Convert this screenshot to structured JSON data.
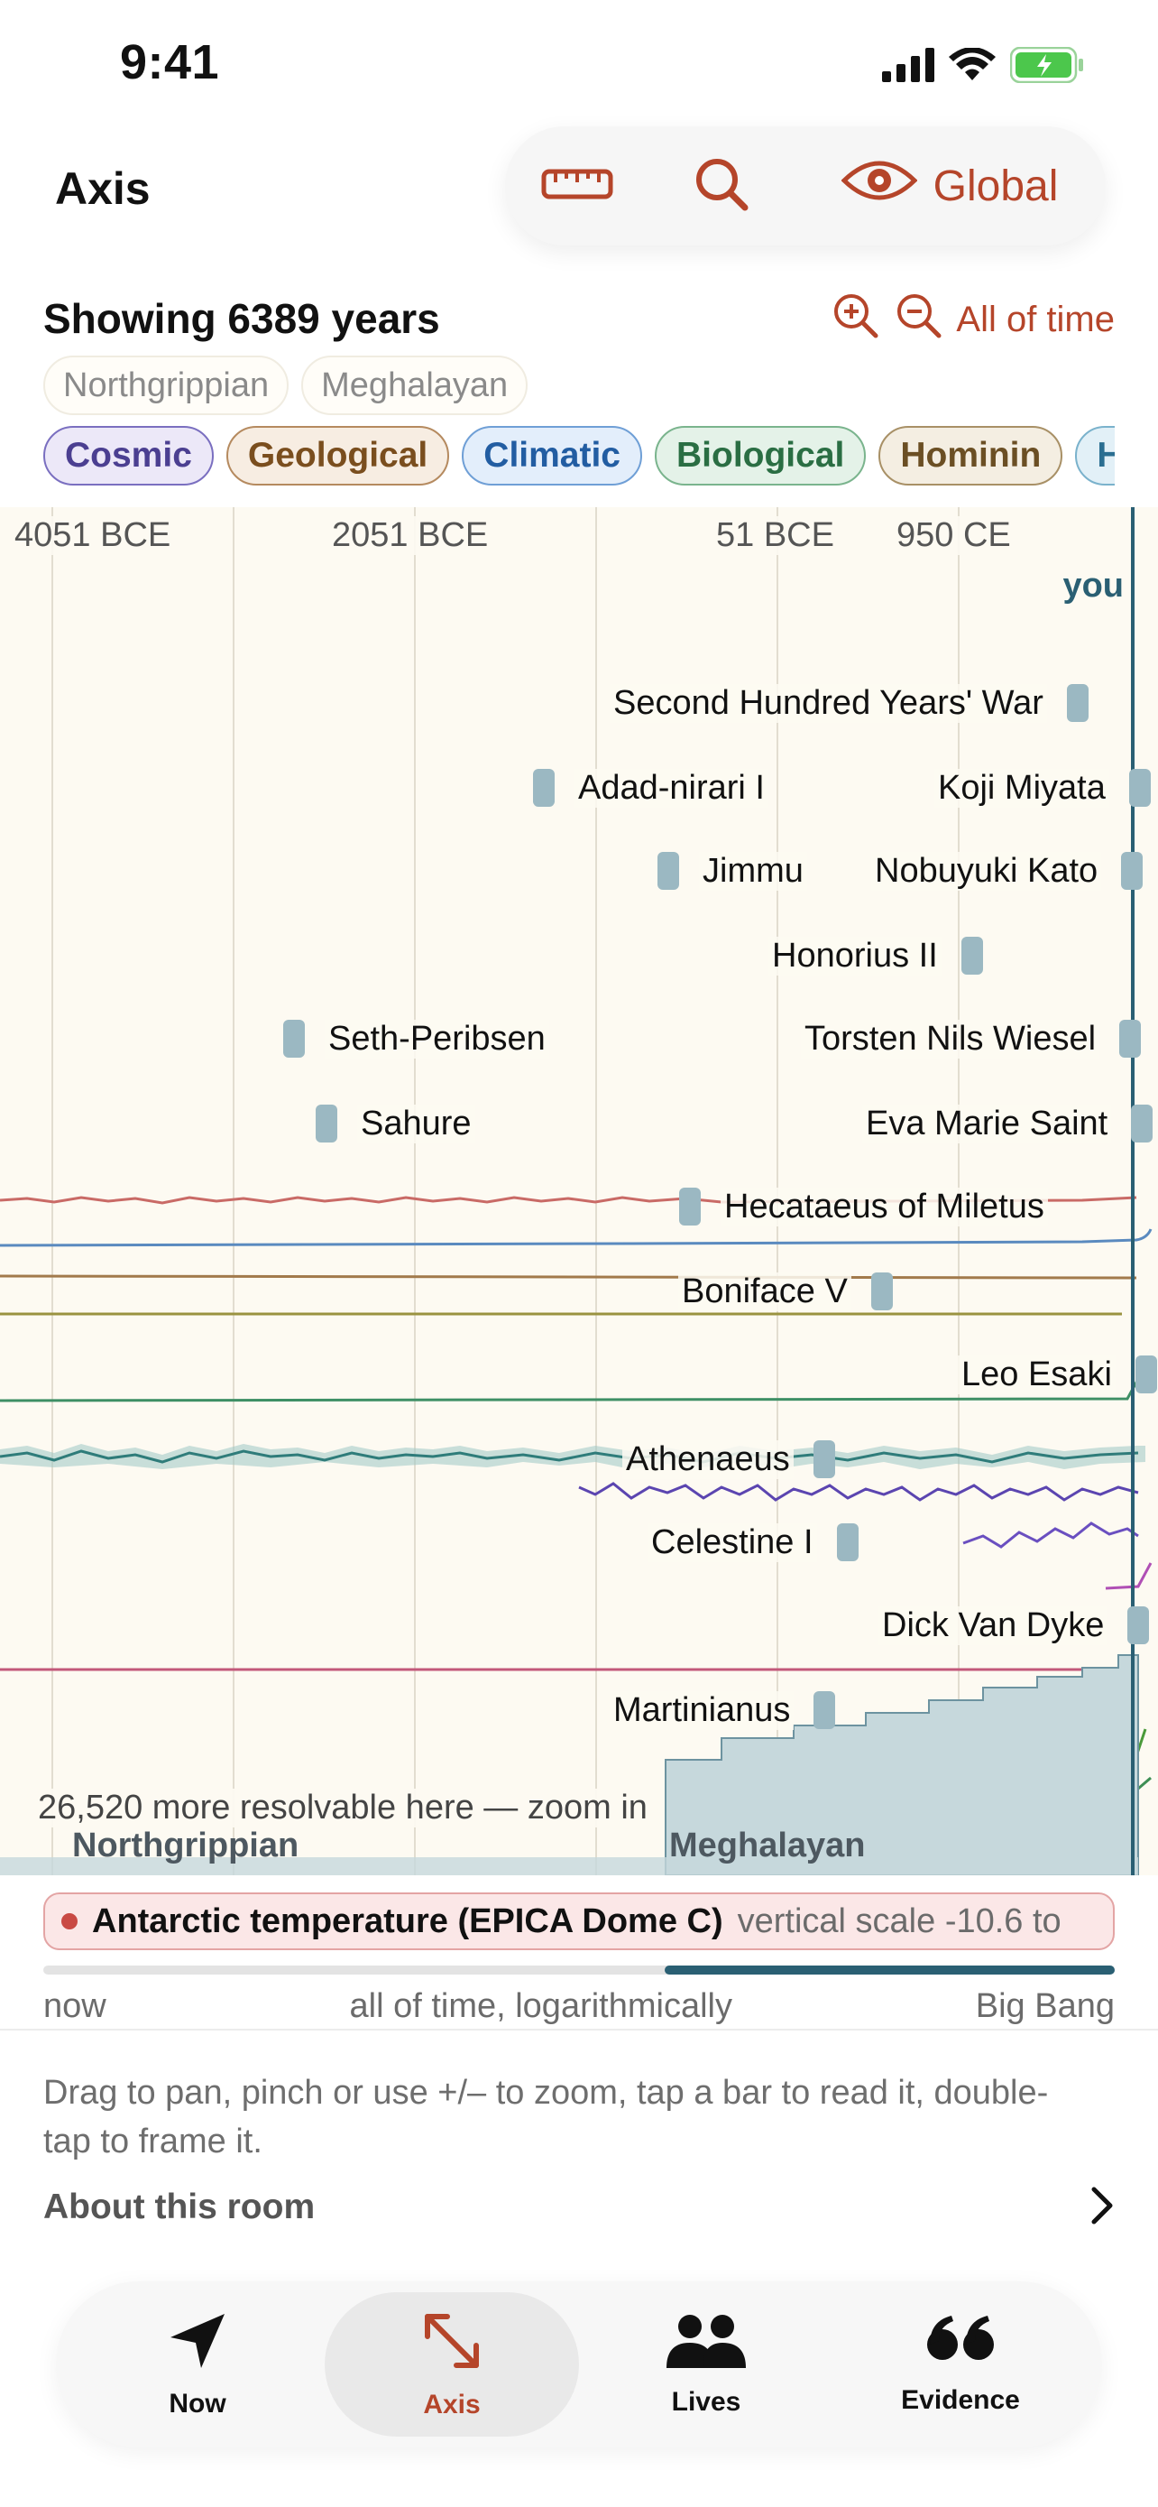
{
  "status_bar": {
    "time": "9:41"
  },
  "header": {
    "title": "Axis",
    "toolbar": {
      "ruler_icon": "ruler-icon",
      "search_icon": "search-icon",
      "view_icon": "eye-icon",
      "view_label": "Global"
    }
  },
  "info": {
    "showing": "Showing 6389 years",
    "zoom_in_icon": "zoom-in-icon",
    "zoom_out_icon": "zoom-out-icon",
    "all_of_time": "All of time"
  },
  "epochs": [
    "Northgrippian",
    "Meghalayan"
  ],
  "filters": [
    {
      "label": "Cosmic",
      "color": "#4b3f91",
      "bg": "#ece8f8",
      "border": "#7a6fc0"
    },
    {
      "label": "Geological",
      "color": "#7a4e1e",
      "bg": "#f7ede2",
      "border": "#b58a5f"
    },
    {
      "label": "Climatic",
      "color": "#225da2",
      "bg": "#e3eefb",
      "border": "#6f9fd6"
    },
    {
      "label": "Biological",
      "color": "#2a6e43",
      "bg": "#e4f2e8",
      "border": "#7ab48d"
    },
    {
      "label": "Hominin",
      "color": "#6b4f24",
      "bg": "#f4eee2",
      "border": "#a89066"
    },
    {
      "label": "Hu",
      "color": "#2a6e91",
      "bg": "#e2f0f7",
      "border": "#7ab2cc"
    }
  ],
  "timeline": {
    "ticks": [
      "4051 BCE",
      "2051 BCE",
      "51 BCE",
      "950 CE"
    ],
    "you_label": "you",
    "events": [
      "Second Hundred Years' War",
      "Adad-nirari I",
      "Koji Miyata",
      "Jimmu",
      "Nobuyuki Kato",
      "Honorius II",
      "Seth-Peribsen",
      "Torsten Nils Wiesel",
      "Sahure",
      "Eva Marie Saint",
      "Hecataeus of Miletus",
      "Boniface V",
      "Leo Esaki",
      "Athenaeus",
      "Celestine I",
      "Dick Van Dyke",
      "Martinianus"
    ],
    "more_note": "26,520 more resolvable here — zoom in",
    "epoch_labels": [
      "Northgrippian",
      "Meghalayan"
    ]
  },
  "series": {
    "name": "Antarctic temperature (EPICA Dome C)",
    "scale": "vertical scale -10.6 to",
    "color": "#c94a44"
  },
  "log_scale": {
    "left": "now",
    "middle": "all of time, logarithmically",
    "right": "Big Bang",
    "fill_fraction": 0.42
  },
  "help_text": "Drag to pan, pinch or use +/– to zoom, tap a bar to read it, double-tap to frame it.",
  "about": {
    "label": "About this room",
    "icon": "chevron-right-icon"
  },
  "tabs": [
    {
      "label": "Now",
      "icon": "navigation-arrow-icon"
    },
    {
      "label": "Axis",
      "icon": "expand-arrows-icon"
    },
    {
      "label": "Lives",
      "icon": "people-icon"
    },
    {
      "label": "Evidence",
      "icon": "quote-icon"
    }
  ],
  "accent_color": "#b5452a"
}
